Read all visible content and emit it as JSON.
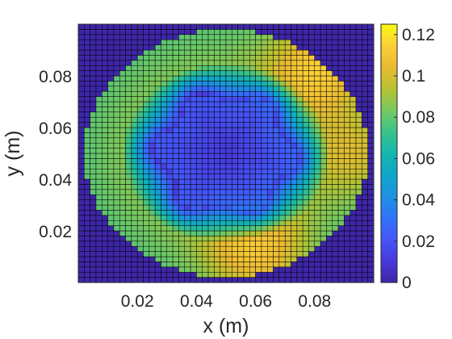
{
  "chart_data": {
    "type": "heatmap",
    "title": "",
    "xlabel": "x (m)",
    "ylabel": "y (m)",
    "xlim": [
      0,
      0.1
    ],
    "ylim": [
      0,
      0.1
    ],
    "x_ticks": [
      0.02,
      0.04,
      0.06,
      0.08
    ],
    "x_tick_labels": [
      "0.02",
      "0.04",
      "0.06",
      "0.08"
    ],
    "y_ticks": [
      0.02,
      0.04,
      0.06,
      0.08
    ],
    "y_tick_labels": [
      "0.02",
      "0.04",
      "0.06",
      "0.08"
    ],
    "grid": {
      "nx": 50,
      "ny": 50,
      "cell_size_m": 0.002,
      "origin": "lower-left",
      "description_of_values": "Radially symmetric-ish field inside a circular domain centred at (0.05, 0.05) with radius ~0.048 m; value 0 outside the domain; low values (~0.0-0.03) in the central hexagonal region (r < ~0.025 m), rising to ~0.08-0.12 in the ring r ~0.03-0.045 m, with maxima near the upper-right and lower-middle."
    },
    "field_model": {
      "center": [
        0.05,
        0.05
      ],
      "domain_radius": 0.048,
      "inner_radius": 0.022,
      "outer_peak_radius": 0.035,
      "inner_value": 0.01,
      "ring_value": 0.085,
      "hotspots": [
        {
          "x": 0.082,
          "y": 0.083,
          "amp": 0.035
        },
        {
          "x": 0.06,
          "y": 0.012,
          "amp": 0.03
        },
        {
          "x": 0.095,
          "y": 0.05,
          "amp": 0.02
        }
      ]
    },
    "colorbar": {
      "colormap": "parula",
      "range": [
        0,
        0.125
      ],
      "ticks": [
        0,
        0.02,
        0.04,
        0.06,
        0.08,
        0.1,
        0.12
      ],
      "tick_labels": [
        "0",
        "0.02",
        "0.04",
        "0.06",
        "0.08",
        "0.1",
        "0.12"
      ]
    },
    "cell_edge_color": "#000000",
    "background_value": 0
  }
}
